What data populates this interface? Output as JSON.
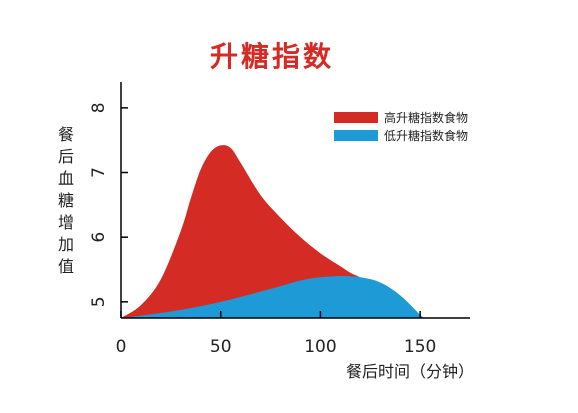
{
  "chart_data": {
    "type": "area",
    "title": "升糖指数",
    "xlabel": "餐后时间（分钟）",
    "ylabel": "餐后血糖增加值",
    "xlim": [
      0,
      175
    ],
    "ylim": [
      4.75,
      8.4
    ],
    "x_ticks": [
      0,
      50,
      100,
      150
    ],
    "y_ticks": [
      5,
      6,
      7,
      8
    ],
    "grid": false,
    "legend_position": "top-right",
    "series": [
      {
        "name": "高升糖指数食物",
        "color": "#d42b25",
        "points": [
          [
            0,
            4.75
          ],
          [
            10,
            4.95
          ],
          [
            20,
            5.35
          ],
          [
            30,
            6.1
          ],
          [
            35,
            6.6
          ],
          [
            40,
            7.05
          ],
          [
            45,
            7.32
          ],
          [
            50,
            7.42
          ],
          [
            55,
            7.38
          ],
          [
            60,
            7.15
          ],
          [
            70,
            6.65
          ],
          [
            80,
            6.3
          ],
          [
            90,
            6.0
          ],
          [
            100,
            5.75
          ],
          [
            110,
            5.55
          ],
          [
            115,
            5.45
          ],
          [
            120,
            5.38
          ]
        ]
      },
      {
        "name": "低升糖指数食物",
        "color": "#1e9ad6",
        "points": [
          [
            0,
            4.75
          ],
          [
            25,
            4.85
          ],
          [
            50,
            5.0
          ],
          [
            75,
            5.2
          ],
          [
            90,
            5.33
          ],
          [
            100,
            5.38
          ],
          [
            110,
            5.4
          ],
          [
            120,
            5.38
          ],
          [
            130,
            5.3
          ],
          [
            140,
            5.1
          ],
          [
            150,
            4.8
          ],
          [
            152,
            4.75
          ]
        ]
      }
    ]
  }
}
